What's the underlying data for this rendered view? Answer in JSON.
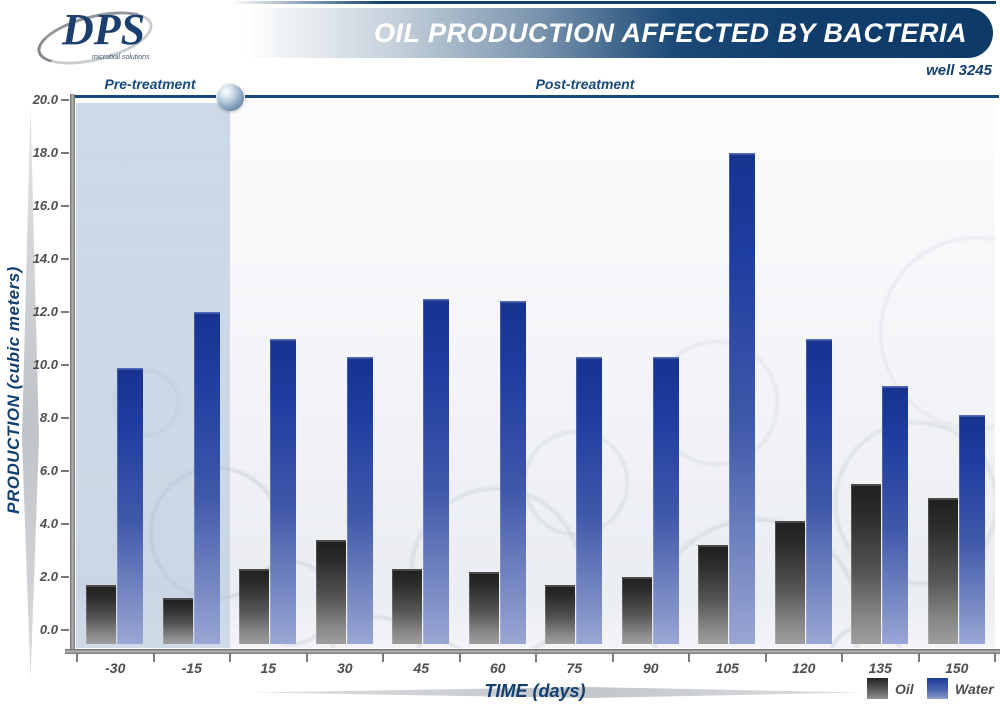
{
  "header": {
    "logo_text": "DPS",
    "logo_subtext": "microbial solutions",
    "title": "OIL PRODUCTION AFFECTED BY BACTERIA",
    "well_label": "well  3245"
  },
  "annotations": {
    "pre_label": "Pre-treatment",
    "post_label": "Post-treatment",
    "pre_categories": [
      "-30",
      "-15"
    ]
  },
  "chart_data": {
    "type": "bar",
    "title": "OIL PRODUCTION AFFECTED BY BACTERIA",
    "xlabel": "TIME (days)",
    "ylabel": "PRODUCTION (cubic meters)",
    "categories": [
      "-30",
      "-15",
      "15",
      "30",
      "45",
      "60",
      "75",
      "90",
      "105",
      "120",
      "135",
      "150"
    ],
    "series": [
      {
        "name": "Oil",
        "values": [
          1.7,
          1.2,
          2.3,
          3.4,
          2.3,
          2.2,
          1.7,
          2.0,
          3.2,
          4.1,
          5.5,
          5.0
        ]
      },
      {
        "name": "Water",
        "values": [
          9.9,
          12.0,
          11.0,
          10.3,
          12.5,
          12.4,
          10.3,
          10.3,
          18.0,
          11.0,
          9.2,
          8.1
        ]
      }
    ],
    "ylim": [
      0,
      20
    ],
    "ytick_step": 2,
    "ytick_format_decimals": 1,
    "grid": false,
    "legend_position": "bottom-right"
  },
  "colors": {
    "navy": "#123f70",
    "water_bar_top": "#1b3a9c",
    "water_bar_bottom": "#9aa6d4",
    "oil_bar_top": "#202020",
    "oil_bar_bottom": "#9d9d9d",
    "pre_region_overlay": "#a5bcd4",
    "tick_text": "#4e4e4e",
    "title_text": "#ffffff"
  }
}
